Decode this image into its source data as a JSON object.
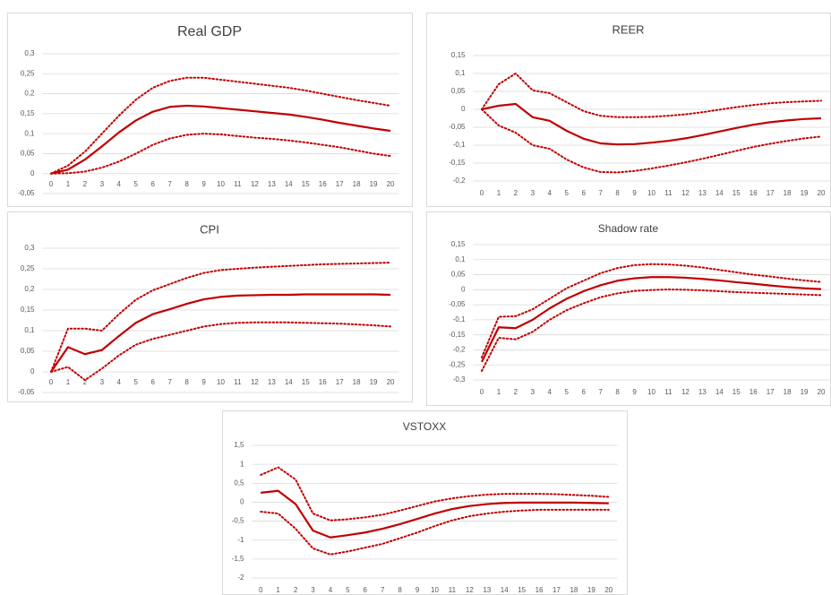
{
  "chart_data": [
    {
      "type": "line",
      "title": "Real GDP",
      "categories": [
        0,
        1,
        2,
        3,
        4,
        5,
        6,
        7,
        8,
        9,
        10,
        11,
        12,
        13,
        14,
        15,
        16,
        17,
        18,
        19,
        20
      ],
      "ylim": [
        -0.05,
        0.3
      ],
      "yticks": [
        {
          "value": -0.05,
          "label": "-0,05"
        },
        0,
        {
          "value": 0.05,
          "label": "0,05"
        },
        {
          "value": 0.1,
          "label": "0,1"
        },
        {
          "value": 0.15,
          "label": "0,15"
        },
        {
          "value": 0.2,
          "label": "0,2"
        },
        {
          "value": 0.25,
          "label": "0,25"
        },
        {
          "value": 0.3,
          "label": "0,3"
        }
      ],
      "grid": true,
      "series": [
        {
          "color": "#c00000",
          "dash": "dotted",
          "values": [
            0,
            0.02,
            0.055,
            0.1,
            0.145,
            0.185,
            0.215,
            0.232,
            0.24,
            0.24,
            0.235,
            0.23,
            0.225,
            0.22,
            0.215,
            0.208,
            0.2,
            0.192,
            0.184,
            0.177,
            0.17
          ]
        },
        {
          "color": "#c00000",
          "dash": "solid",
          "values": [
            0,
            0.01,
            0.035,
            0.068,
            0.103,
            0.133,
            0.155,
            0.167,
            0.17,
            0.168,
            0.164,
            0.16,
            0.156,
            0.152,
            0.148,
            0.142,
            0.135,
            0.127,
            0.12,
            0.113,
            0.107
          ]
        },
        {
          "color": "#c00000",
          "dash": "dotted",
          "values": [
            0,
            0.001,
            0.005,
            0.015,
            0.03,
            0.05,
            0.072,
            0.088,
            0.097,
            0.1,
            0.098,
            0.094,
            0.09,
            0.087,
            0.083,
            0.078,
            0.072,
            0.066,
            0.058,
            0.05,
            0.044
          ]
        }
      ]
    },
    {
      "type": "line",
      "title": "REER",
      "categories": [
        0,
        1,
        2,
        3,
        4,
        5,
        6,
        7,
        8,
        9,
        10,
        11,
        12,
        13,
        14,
        15,
        16,
        17,
        18,
        19,
        20
      ],
      "ylim": [
        -0.2,
        0.15
      ],
      "yticks": [
        {
          "value": -0.2,
          "label": "-0,2"
        },
        {
          "value": -0.15,
          "label": "-0,15"
        },
        {
          "value": -0.1,
          "label": "-0,1"
        },
        {
          "value": -0.05,
          "label": "-0,05"
        },
        0,
        {
          "value": 0.05,
          "label": "0,05"
        },
        {
          "value": 0.1,
          "label": "0,1"
        },
        {
          "value": 0.15,
          "label": "0,15"
        }
      ],
      "grid": true,
      "series": [
        {
          "color": "#c00000",
          "dash": "dotted",
          "values": [
            0,
            0.07,
            0.1,
            0.053,
            0.045,
            0.02,
            -0.005,
            -0.018,
            -0.022,
            -0.022,
            -0.021,
            -0.018,
            -0.014,
            -0.008,
            -0.001,
            0.006,
            0.012,
            0.017,
            0.02,
            0.022,
            0.024
          ]
        },
        {
          "color": "#c00000",
          "dash": "solid",
          "values": [
            0,
            0.01,
            0.015,
            -0.022,
            -0.032,
            -0.06,
            -0.082,
            -0.095,
            -0.098,
            -0.097,
            -0.093,
            -0.088,
            -0.081,
            -0.072,
            -0.062,
            -0.052,
            -0.043,
            -0.036,
            -0.031,
            -0.027,
            -0.025
          ]
        },
        {
          "color": "#c00000",
          "dash": "dotted",
          "values": [
            0,
            -0.045,
            -0.065,
            -0.1,
            -0.11,
            -0.14,
            -0.162,
            -0.175,
            -0.176,
            -0.172,
            -0.165,
            -0.157,
            -0.148,
            -0.138,
            -0.127,
            -0.116,
            -0.105,
            -0.096,
            -0.088,
            -0.081,
            -0.076
          ]
        }
      ]
    },
    {
      "type": "line",
      "title": "CPI",
      "categories": [
        0,
        1,
        2,
        3,
        4,
        5,
        6,
        7,
        8,
        9,
        10,
        11,
        12,
        13,
        14,
        15,
        16,
        17,
        18,
        19,
        20
      ],
      "ylim": [
        -0.05,
        0.3
      ],
      "yticks": [
        {
          "value": -0.05,
          "label": "-0,05"
        },
        0,
        {
          "value": 0.05,
          "label": "0,05"
        },
        {
          "value": 0.1,
          "label": "0,1"
        },
        {
          "value": 0.15,
          "label": "0,15"
        },
        {
          "value": 0.2,
          "label": "0,2"
        },
        {
          "value": 0.25,
          "label": "0,25"
        },
        {
          "value": 0.3,
          "label": "0,3"
        }
      ],
      "grid": true,
      "series": [
        {
          "color": "#c00000",
          "dash": "dotted",
          "values": [
            0,
            0.105,
            0.105,
            0.1,
            0.14,
            0.175,
            0.198,
            0.213,
            0.228,
            0.24,
            0.247,
            0.25,
            0.253,
            0.255,
            0.257,
            0.259,
            0.261,
            0.262,
            0.263,
            0.264,
            0.265
          ]
        },
        {
          "color": "#c00000",
          "dash": "solid",
          "values": [
            0,
            0.06,
            0.043,
            0.053,
            0.087,
            0.119,
            0.14,
            0.152,
            0.165,
            0.176,
            0.182,
            0.185,
            0.186,
            0.187,
            0.187,
            0.188,
            0.188,
            0.188,
            0.188,
            0.188,
            0.187
          ]
        },
        {
          "color": "#c00000",
          "dash": "dotted",
          "values": [
            0,
            0.012,
            -0.02,
            0.008,
            0.04,
            0.066,
            0.08,
            0.09,
            0.1,
            0.11,
            0.116,
            0.119,
            0.12,
            0.12,
            0.12,
            0.119,
            0.118,
            0.117,
            0.115,
            0.113,
            0.11
          ]
        }
      ]
    },
    {
      "type": "line",
      "title": "Shadow rate",
      "categories": [
        0,
        1,
        2,
        3,
        4,
        5,
        6,
        7,
        8,
        9,
        10,
        11,
        12,
        13,
        14,
        15,
        16,
        17,
        18,
        19,
        20
      ],
      "ylim": [
        -0.3,
        0.15
      ],
      "yticks": [
        {
          "value": -0.3,
          "label": "-0,3"
        },
        {
          "value": -0.25,
          "label": "-0,25"
        },
        {
          "value": -0.2,
          "label": "-0,2"
        },
        {
          "value": -0.15,
          "label": "-0,15"
        },
        {
          "value": -0.1,
          "label": "-0,1"
        },
        {
          "value": -0.05,
          "label": "-0,05"
        },
        0,
        {
          "value": 0.05,
          "label": "0,05"
        },
        {
          "value": 0.1,
          "label": "0,1"
        },
        {
          "value": 0.15,
          "label": "0,15"
        }
      ],
      "grid": true,
      "series": [
        {
          "color": "#c00000",
          "dash": "dotted",
          "values": [
            -0.225,
            -0.09,
            -0.088,
            -0.065,
            -0.03,
            0.005,
            0.03,
            0.055,
            0.072,
            0.082,
            0.085,
            0.084,
            0.08,
            0.074,
            0.066,
            0.058,
            0.05,
            0.044,
            0.037,
            0.031,
            0.026
          ]
        },
        {
          "color": "#c00000",
          "dash": "solid",
          "values": [
            -0.24,
            -0.125,
            -0.128,
            -0.1,
            -0.062,
            -0.03,
            -0.005,
            0.015,
            0.03,
            0.038,
            0.042,
            0.042,
            0.04,
            0.036,
            0.031,
            0.025,
            0.02,
            0.014,
            0.009,
            0.005,
            0.002
          ]
        },
        {
          "color": "#c00000",
          "dash": "dotted",
          "values": [
            -0.27,
            -0.16,
            -0.165,
            -0.14,
            -0.1,
            -0.068,
            -0.045,
            -0.025,
            -0.012,
            -0.004,
            -0.001,
            0.001,
            0,
            -0.002,
            -0.005,
            -0.008,
            -0.01,
            -0.012,
            -0.014,
            -0.016,
            -0.018
          ]
        }
      ]
    },
    {
      "type": "line",
      "title": "VSTOXX",
      "categories": [
        0,
        1,
        2,
        3,
        4,
        5,
        6,
        7,
        8,
        9,
        10,
        11,
        12,
        13,
        14,
        15,
        16,
        17,
        18,
        19,
        20
      ],
      "ylim": [
        -2,
        1.5
      ],
      "yticks": [
        -2,
        {
          "value": -1.5,
          "label": "-1,5"
        },
        -1,
        {
          "value": -0.5,
          "label": "-0,5"
        },
        0,
        {
          "value": 0.5,
          "label": "0,5"
        },
        1,
        {
          "value": 1.5,
          "label": "1,5"
        }
      ],
      "grid": true,
      "series": [
        {
          "color": "#c00000",
          "dash": "dotted",
          "values": [
            0.72,
            0.92,
            0.6,
            -0.3,
            -0.48,
            -0.45,
            -0.4,
            -0.33,
            -0.22,
            -0.1,
            0.02,
            0.1,
            0.16,
            0.2,
            0.22,
            0.22,
            0.22,
            0.21,
            0.19,
            0.17,
            0.14
          ]
        },
        {
          "color": "#c00000",
          "dash": "solid",
          "values": [
            0.25,
            0.3,
            -0.05,
            -0.75,
            -0.93,
            -0.87,
            -0.8,
            -0.7,
            -0.58,
            -0.44,
            -0.3,
            -0.18,
            -0.1,
            -0.05,
            -0.02,
            -0.01,
            -0.01,
            -0.01,
            -0.01,
            -0.02,
            -0.03
          ]
        },
        {
          "color": "#c00000",
          "dash": "dotted",
          "values": [
            -0.25,
            -0.3,
            -0.7,
            -1.22,
            -1.38,
            -1.3,
            -1.2,
            -1.1,
            -0.95,
            -0.8,
            -0.63,
            -0.48,
            -0.37,
            -0.3,
            -0.25,
            -0.22,
            -0.2,
            -0.2,
            -0.2,
            -0.2,
            -0.2
          ]
        }
      ]
    }
  ]
}
